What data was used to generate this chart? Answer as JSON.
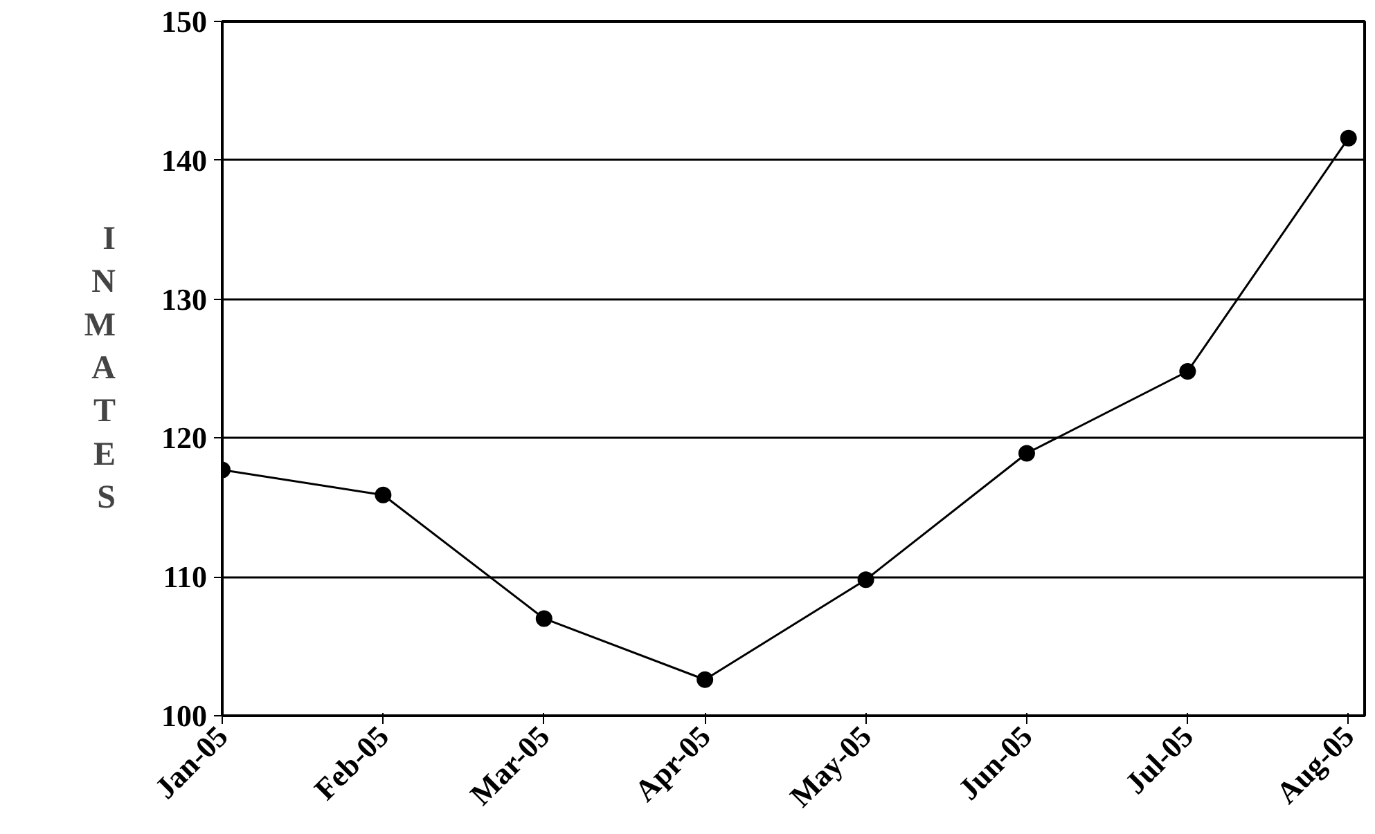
{
  "chart_data": {
    "type": "line",
    "ylabel": "INMATES",
    "categories": [
      "Jan-05",
      "Feb-05",
      "Mar-05",
      "Apr-05",
      "May-05",
      "Jun-05",
      "Jul-05",
      "Aug-05"
    ],
    "series": [
      {
        "color": "#000000",
        "values": [
          117.7,
          115.9,
          107,
          102.6,
          109.8,
          118.9,
          124.8,
          141.6
        ]
      }
    ],
    "ylim": [
      100,
      150
    ],
    "yticks": [
      100,
      110,
      120,
      130,
      140,
      150
    ],
    "grid": "y",
    "marker": "circle",
    "line_style": "solid"
  }
}
